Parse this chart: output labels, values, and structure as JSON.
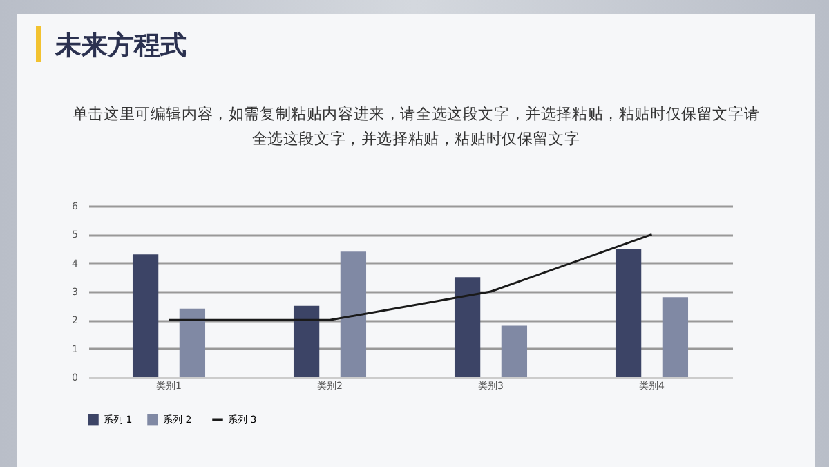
{
  "chart_data": {
    "type": "bar",
    "title": "未来方程式",
    "subtitle": "单击这里可编辑内容，如需复制粘贴内容进来，请全选这段文字，并选择粘贴，粘贴时仅保留文字请全选这段文字，并选择粘贴，粘贴时仅保留文字",
    "categories": [
      "类别1",
      "类别2",
      "类别3",
      "类别4"
    ],
    "series": [
      {
        "name": "系列 1",
        "color": "#3c4466",
        "values": [
          4.3,
          2.5,
          3.5,
          4.5
        ]
      },
      {
        "name": "系列 2",
        "color": "#8089a4",
        "values": [
          2.4,
          4.4,
          1.8,
          2.8
        ]
      },
      {
        "name": "系列 3",
        "color": "#1a1a1a",
        "type": "line",
        "values": [
          2,
          2,
          3,
          5
        ]
      }
    ],
    "ylim": [
      0,
      6
    ],
    "yticks": [
      0,
      1,
      2,
      3,
      4,
      5,
      6
    ],
    "grid": "y",
    "legend": "bottom"
  }
}
